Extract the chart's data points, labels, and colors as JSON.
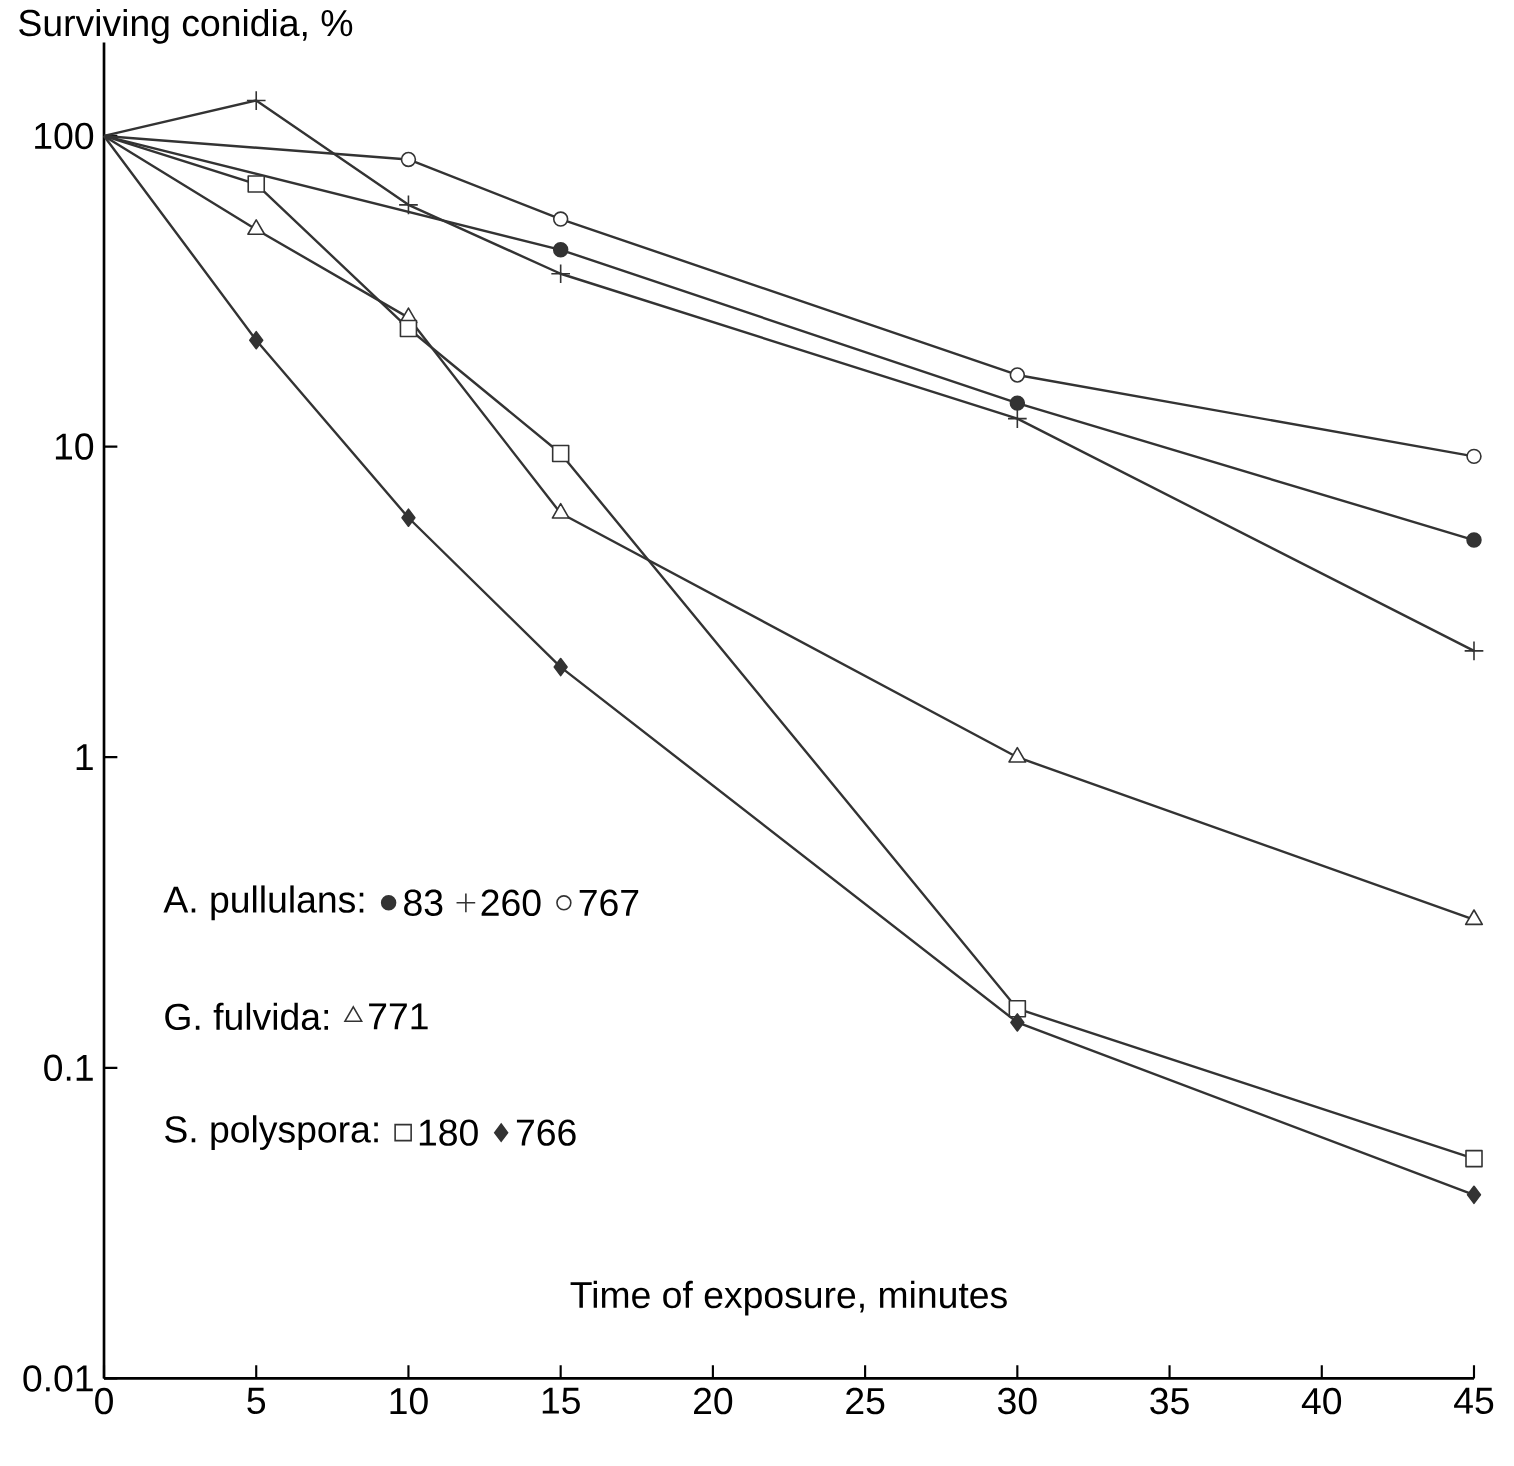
{
  "chart_data": {
    "type": "line",
    "xlabel": "Time of exposure, minutes",
    "ylabel": "Surviving conidia, %",
    "annotations": [
      "A. pullulans:",
      "G. fulvida:",
      "S. polyspora:"
    ],
    "xlim": [
      0,
      45
    ],
    "ylim": [
      0.01,
      200
    ],
    "xticks": [
      0,
      5,
      10,
      15,
      20,
      25,
      30,
      35,
      40,
      45
    ],
    "yticks": [
      0.01,
      0.1,
      1,
      10,
      100
    ],
    "log": "y",
    "grid": false,
    "legend": "bottom left",
    "line_style": "solid",
    "series": [
      {
        "name": "83",
        "color": "#333333",
        "marker": "circle",
        "x": [
          0,
          15,
          30,
          45
        ],
        "values": [
          100,
          43,
          13.8,
          5.0
        ]
      },
      {
        "name": "260",
        "color": "#333333",
        "marker": "cross",
        "x": [
          0,
          5,
          10,
          15,
          30,
          45
        ],
        "values": [
          100,
          130,
          60,
          36,
          12.3,
          2.2
        ]
      },
      {
        "name": "767",
        "color": "#333333",
        "marker": "circle",
        "x": [
          0,
          10,
          15,
          30,
          45
        ],
        "values": [
          100,
          84,
          54,
          17,
          9.3
        ]
      },
      {
        "name": "771",
        "color": "#333333",
        "marker": "triangle",
        "x": [
          0,
          5,
          10,
          15,
          30,
          45
        ],
        "values": [
          100,
          50,
          26,
          6.1,
          1.0,
          0.3
        ]
      },
      {
        "name": "180",
        "color": "#333333",
        "marker": "square",
        "x": [
          0,
          5,
          10,
          15,
          30,
          45
        ],
        "values": [
          100,
          70,
          24,
          9.5,
          0.155,
          0.051
        ]
      },
      {
        "name": "766",
        "color": "#333333",
        "marker": "diamond",
        "x": [
          0,
          5,
          10,
          15,
          30,
          45
        ],
        "values": [
          100,
          22,
          5.9,
          1.95,
          0.14,
          0.039
        ]
      }
    ]
  }
}
